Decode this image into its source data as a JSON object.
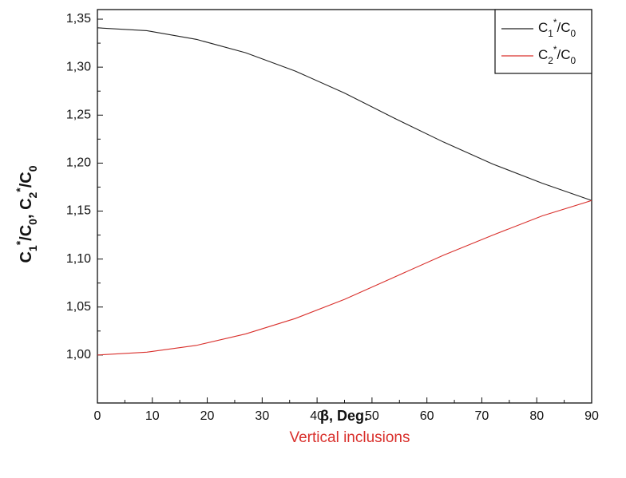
{
  "chart_data": {
    "type": "line",
    "x_label": "β, Deg.",
    "y_label": "C1*/C0, C2*/C0",
    "caption": "Vertical inclusions",
    "x": [
      0,
      9,
      18,
      27,
      36,
      45,
      54,
      63,
      72,
      81,
      90
    ],
    "series": [
      {
        "name": "C1*/C0",
        "color": "#222222",
        "values": [
          1.341,
          1.338,
          1.329,
          1.315,
          1.296,
          1.273,
          1.247,
          1.222,
          1.199,
          1.179,
          1.161
        ]
      },
      {
        "name": "C2*/C0",
        "color": "#d9302c",
        "values": [
          1.0,
          1.003,
          1.01,
          1.022,
          1.038,
          1.058,
          1.081,
          1.104,
          1.125,
          1.145,
          1.161
        ]
      }
    ],
    "xlim": [
      0,
      90
    ],
    "xticks": [
      0,
      10,
      20,
      30,
      40,
      50,
      60,
      70,
      80,
      90
    ],
    "ylim": [
      0.95,
      1.36
    ],
    "yticks": [
      {
        "value": 1.0,
        "label": "1,00"
      },
      {
        "value": 1.05,
        "label": "1,05"
      },
      {
        "value": 1.1,
        "label": "1,10"
      },
      {
        "value": 1.15,
        "label": "1,15"
      },
      {
        "value": 1.2,
        "label": "1,20"
      },
      {
        "value": 1.25,
        "label": "1,25"
      },
      {
        "value": 1.3,
        "label": "1,30"
      },
      {
        "value": 1.35,
        "label": "1,35"
      }
    ],
    "legend": "top-right",
    "caption_color": "#d9302c"
  }
}
